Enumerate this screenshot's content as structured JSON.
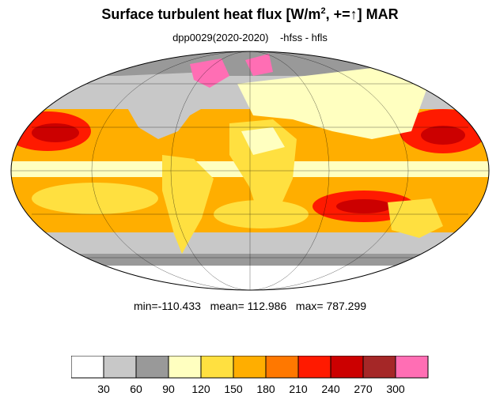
{
  "title": {
    "main": "Surface turbulent heat flux [W/m",
    "sup": "2",
    "tail": ", +=↑]  MAR"
  },
  "subtitle": "dpp0029(2020-2020)    -hfss - hfls",
  "stats": {
    "min_label": "min=",
    "min": "-110.433",
    "mean_label": "mean=",
    "mean": "112.986",
    "max_label": "max=",
    "max": "787.299"
  },
  "colorbar": {
    "colors": [
      "#ffffff",
      "#c8c8c8",
      "#999999",
      "#ffffc0",
      "#ffe040",
      "#ffae00",
      "#ff7800",
      "#ff1a00",
      "#cc0000",
      "#a52727",
      "#ff6eb4"
    ],
    "labels": [
      "30",
      "60",
      "90",
      "120",
      "150",
      "180",
      "210",
      "240",
      "270",
      "300"
    ]
  },
  "map": {
    "projection": "Mollweide",
    "grid": true,
    "land_color": "#ffe040",
    "ocean_color": "#ffae00"
  }
}
